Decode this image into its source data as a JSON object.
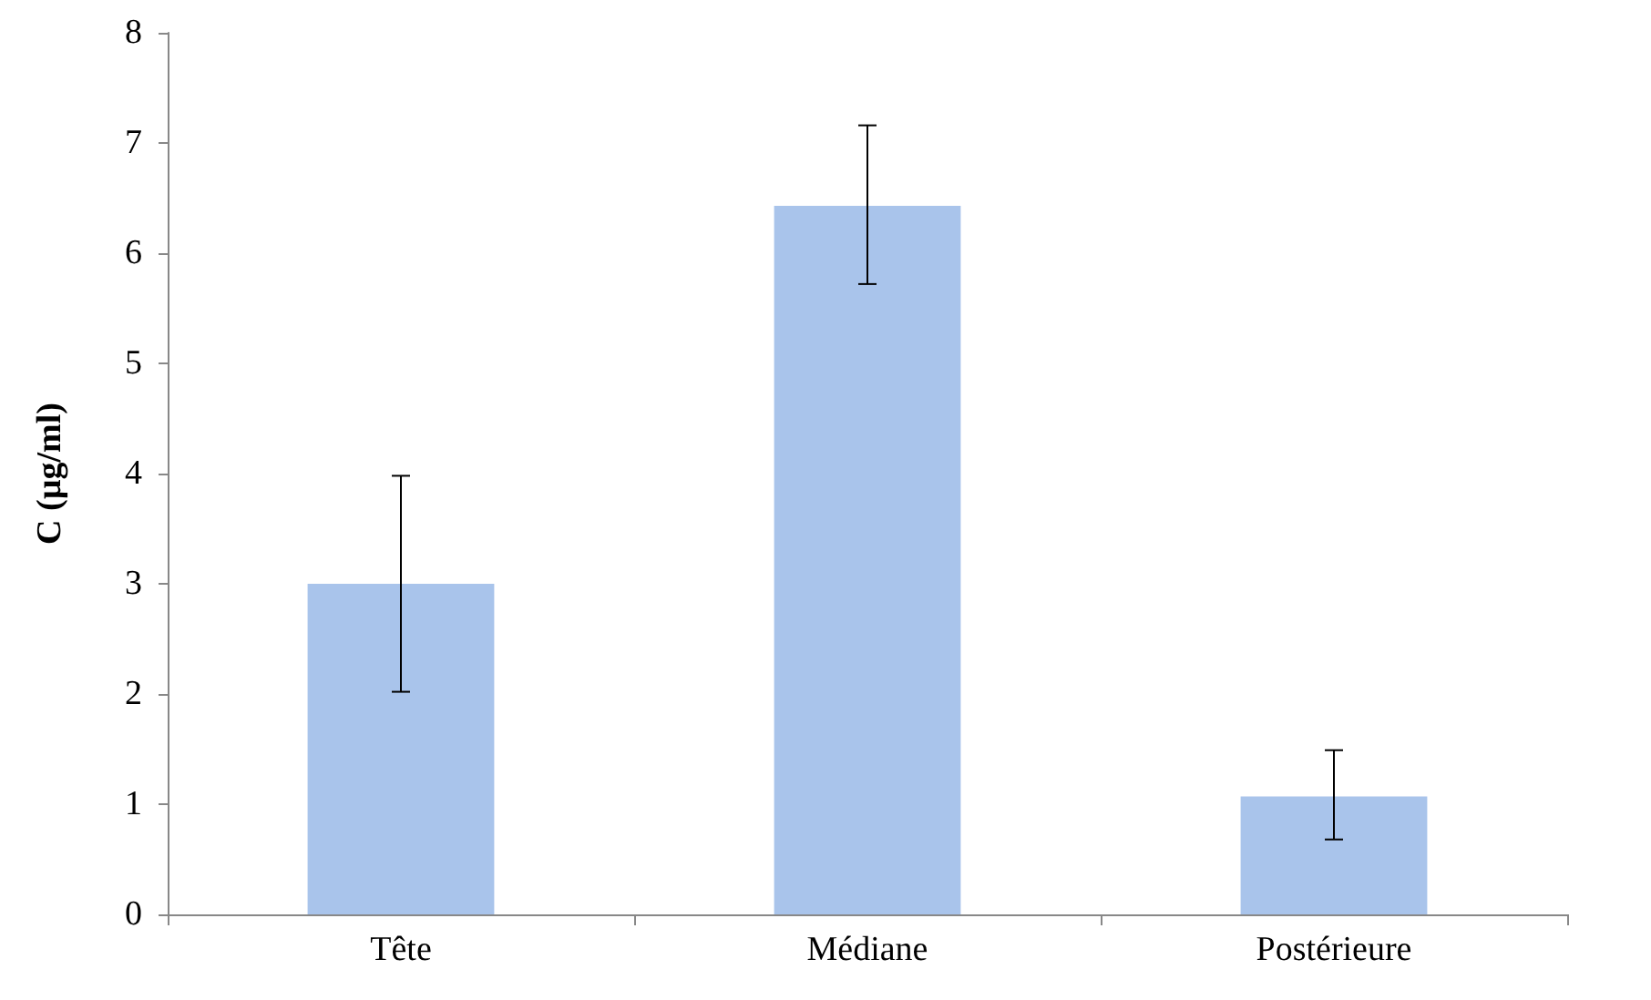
{
  "chart_data": {
    "type": "bar",
    "ylabel": "C (µg/ml)",
    "categories": [
      "Tête",
      "Médiane",
      "Postérieure"
    ],
    "series": [
      {
        "color": "#a9c4eb",
        "values": [
          3.0,
          6.43,
          1.07
        ],
        "errors": [
          [
            2.02,
            3.98
          ],
          [
            5.72,
            7.16
          ],
          [
            0.68,
            1.49
          ]
        ]
      }
    ],
    "ylim": [
      0,
      8
    ],
    "yticks": [
      0,
      1,
      2,
      3,
      4,
      5,
      6,
      7,
      8
    ],
    "grid": false
  }
}
